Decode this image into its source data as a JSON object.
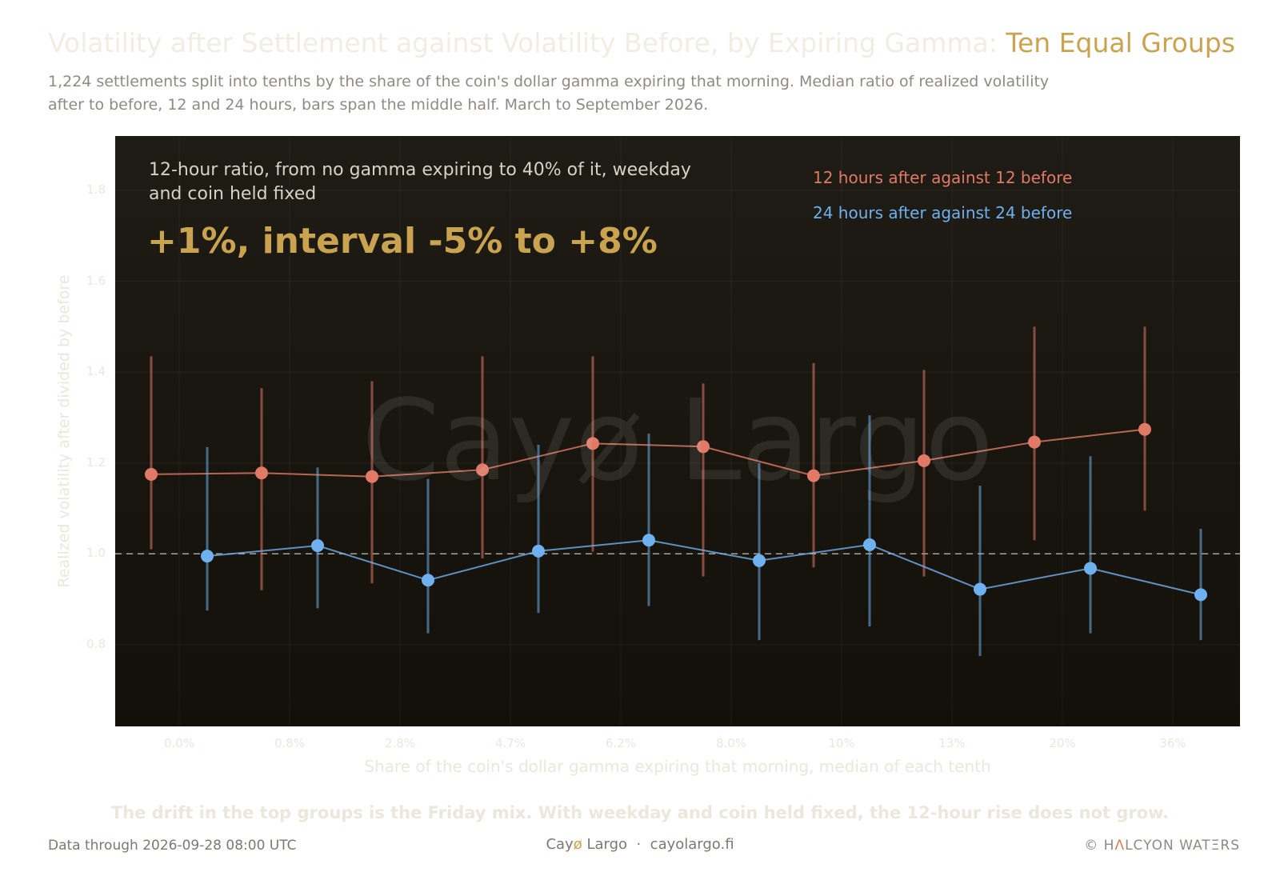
{
  "title": {
    "main": "Volatility after Settlement against Volatility Before, by Expiring Gamma:",
    "highlight": "Ten Equal Groups"
  },
  "subtitle": "1,224 settlements split into tenths by the share of the coin's dollar gamma expiring that morning. Median ratio of realized volatility after to before, 12 and 24 hours, bars span the middle half. March to September 2026.",
  "watermark": "Cayø Largo",
  "callout": {
    "label": "12-hour ratio, from no gamma expiring to 40% of it, weekday and coin held fixed",
    "value": "+1%, interval -5% to +8%"
  },
  "takeaway": "The drift in the top groups is the Friday mix. With weekday and coin held fixed, the 12-hour rise does not grow.",
  "footer": {
    "data_through": "Data through 2026-09-28 08:00 UTC",
    "brand_pre": "Cay",
    "brand_o": "ø",
    "brand_post": " Largo",
    "sep": "·",
    "site": "cayolargo.fi",
    "copyright_pre": "© H",
    "copyright_a": "Λ",
    "copyright_post": "LCYON WATΞRS"
  },
  "colors": {
    "accent": "#c9a34f",
    "series_12h": "#e07a67",
    "series_24h": "#6fb0ee",
    "plot_bg": "#1a160f"
  },
  "chart_data": {
    "type": "line",
    "xlabel": "Share of the coin's dollar gamma expiring that morning, median of each tenth",
    "ylabel": "Realized volatility after divided by before",
    "categories": [
      "0.0%",
      "0.8%",
      "2.8%",
      "4.7%",
      "6.2%",
      "8.0%",
      "10%",
      "13%",
      "20%",
      "36%"
    ],
    "ylim": [
      0.62,
      1.92
    ],
    "yticks": [
      0.8,
      1.0,
      1.2,
      1.4,
      1.6,
      1.8
    ],
    "yticks_labels": [
      "0.8",
      "1.0",
      "1.2",
      "1.4",
      "1.6",
      "1.8"
    ],
    "reference_line": 1.0,
    "grid": true,
    "error_bars": "middle half (interquartile range)",
    "series": [
      {
        "name": "12 hours after against 12 before",
        "color": "#e07a67",
        "values": [
          1.175,
          1.178,
          1.17,
          1.185,
          1.243,
          1.236,
          1.172,
          1.205,
          1.246,
          1.274
        ],
        "low": [
          1.01,
          0.92,
          0.935,
          0.99,
          1.005,
          0.95,
          0.97,
          0.95,
          1.03,
          1.095
        ],
        "high": [
          1.435,
          1.365,
          1.38,
          1.435,
          1.435,
          1.375,
          1.42,
          1.405,
          1.5,
          1.5
        ]
      },
      {
        "name": "24 hours after against 24 before",
        "color": "#6fb0ee",
        "values": [
          0.995,
          1.018,
          0.942,
          1.006,
          1.03,
          0.985,
          1.02,
          0.922,
          0.968,
          0.91
        ],
        "low": [
          0.875,
          0.88,
          0.825,
          0.87,
          0.885,
          0.81,
          0.84,
          0.775,
          0.825,
          0.81
        ],
        "high": [
          1.235,
          1.19,
          1.165,
          1.24,
          1.265,
          1.2,
          1.305,
          1.15,
          1.215,
          1.055
        ]
      }
    ]
  }
}
